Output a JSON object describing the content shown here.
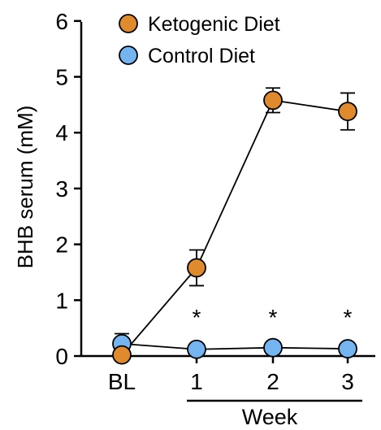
{
  "chart_data": {
    "type": "line",
    "categories": [
      "BL",
      "1",
      "2",
      "3"
    ],
    "xlabel": "Week",
    "ylabel": "BHB serum (mM)",
    "ylim": [
      0,
      6
    ],
    "yticks": [
      "0",
      "1",
      "2",
      "3",
      "4",
      "5",
      "6"
    ],
    "grid": false,
    "legend_position": "top-left",
    "series": [
      {
        "name": "Ketogenic Diet",
        "color": "#e08a2e",
        "values": [
          0.02,
          1.58,
          4.58,
          4.38
        ],
        "error": [
          0.0,
          0.32,
          0.22,
          0.33
        ]
      },
      {
        "name": "Control Diet",
        "color": "#74b4f0",
        "values": [
          0.22,
          0.12,
          0.15,
          0.13
        ],
        "error": [
          0.18,
          0.04,
          0.05,
          0.04
        ]
      }
    ],
    "significance": [
      "",
      "*",
      "*",
      "*"
    ]
  }
}
